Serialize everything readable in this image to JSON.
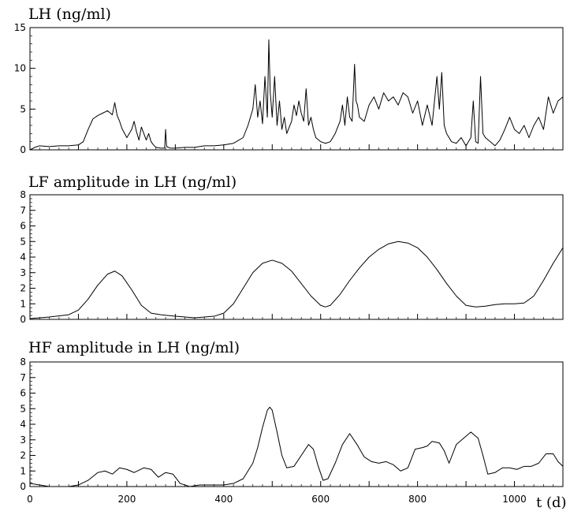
{
  "chart_data": [
    {
      "type": "line",
      "title": "LH (ng/ml)",
      "xlim": [
        0,
        1100
      ],
      "ylim": [
        0,
        15
      ],
      "yticks": [
        0,
        5,
        10,
        15
      ],
      "grid": false,
      "series": [
        {
          "x": [
            0,
            10,
            20,
            40,
            60,
            80,
            100,
            110,
            120,
            130,
            140,
            150,
            160,
            170,
            175,
            180,
            185,
            190,
            200,
            210,
            215,
            220,
            225,
            230,
            235,
            240,
            245,
            250,
            255,
            260,
            270,
            278,
            280,
            282,
            290,
            300,
            320,
            340,
            360,
            380,
            400,
            420,
            440,
            450,
            460,
            465,
            470,
            475,
            480,
            485,
            490,
            493,
            496,
            500,
            505,
            510,
            515,
            520,
            525,
            530,
            540,
            545,
            550,
            555,
            560,
            565,
            570,
            575,
            580,
            585,
            590,
            600,
            610,
            620,
            630,
            640,
            645,
            650,
            655,
            660,
            665,
            670,
            673,
            676,
            680,
            690,
            700,
            710,
            720,
            730,
            740,
            750,
            760,
            770,
            780,
            790,
            800,
            810,
            820,
            830,
            840,
            845,
            850,
            855,
            860,
            870,
            880,
            890,
            900,
            910,
            915,
            920,
            925,
            930,
            935,
            940,
            950,
            960,
            970,
            980,
            990,
            1000,
            1010,
            1020,
            1030,
            1040,
            1050,
            1060,
            1070,
            1080,
            1090,
            1100
          ],
          "values": [
            0,
            0.3,
            0.5,
            0.4,
            0.5,
            0.5,
            0.6,
            1,
            2.5,
            3.8,
            4.2,
            4.5,
            4.8,
            4.3,
            5.8,
            4.2,
            3.5,
            2.6,
            1.5,
            2.5,
            3.5,
            2.2,
            1.2,
            2.8,
            2,
            1.2,
            2,
            1,
            0.6,
            0.3,
            0.2,
            0.2,
            2.5,
            0.4,
            0.2,
            0.2,
            0.3,
            0.3,
            0.5,
            0.5,
            0.6,
            0.8,
            1.5,
            3,
            5,
            8,
            4,
            6,
            3.2,
            9,
            4,
            13.5,
            7,
            4,
            9,
            3,
            6,
            2.5,
            4,
            2,
            3.5,
            5.5,
            4.2,
            6,
            4.5,
            3.5,
            7.5,
            3,
            4,
            2.5,
            1.5,
            1,
            0.8,
            1,
            2,
            3.5,
            5.5,
            3,
            6.5,
            4,
            3.5,
            10.5,
            6,
            5.5,
            4,
            3.5,
            5.5,
            6.5,
            5,
            7,
            6,
            6.5,
            5.5,
            7,
            6.5,
            4.5,
            6,
            3,
            5.5,
            3,
            9,
            5,
            9.5,
            3,
            2,
            1,
            0.8,
            1.5,
            0.5,
            1.5,
            6,
            1,
            0.8,
            9,
            2,
            1.5,
            1,
            0.5,
            1.2,
            2.5,
            4,
            2.5,
            2,
            3,
            1.5,
            3,
            4,
            2.5,
            6.5,
            4.5,
            6,
            6.5
          ]
        }
      ]
    },
    {
      "type": "line",
      "title": "LF amplitude in LH (ng/ml)",
      "xlim": [
        0,
        1100
      ],
      "ylim": [
        0,
        8
      ],
      "yticks": [
        0,
        1,
        2,
        3,
        4,
        5,
        6,
        7,
        8
      ],
      "grid": false,
      "series": [
        {
          "x": [
            0,
            40,
            80,
            100,
            120,
            140,
            160,
            175,
            190,
            210,
            230,
            250,
            270,
            300,
            320,
            340,
            360,
            380,
            400,
            420,
            440,
            460,
            480,
            500,
            520,
            540,
            560,
            580,
            600,
            610,
            620,
            640,
            660,
            680,
            700,
            720,
            740,
            760,
            780,
            800,
            820,
            840,
            860,
            880,
            900,
            920,
            940,
            960,
            980,
            1000,
            1020,
            1040,
            1060,
            1080,
            1100
          ],
          "values": [
            0.05,
            0.15,
            0.3,
            0.6,
            1.3,
            2.2,
            2.9,
            3.1,
            2.8,
            1.9,
            0.9,
            0.4,
            0.3,
            0.2,
            0.15,
            0.1,
            0.15,
            0.2,
            0.4,
            1,
            2,
            3,
            3.6,
            3.8,
            3.6,
            3.1,
            2.3,
            1.5,
            0.9,
            0.8,
            0.9,
            1.6,
            2.5,
            3.3,
            4,
            4.5,
            4.85,
            5,
            4.9,
            4.6,
            4,
            3.2,
            2.3,
            1.5,
            0.9,
            0.8,
            0.85,
            0.95,
            1,
            1,
            1.05,
            1.5,
            2.5,
            3.6,
            4.6
          ]
        }
      ]
    },
    {
      "type": "line",
      "title": "HF amplitude in LH (ng/ml)",
      "xlabel": "t (d)",
      "xlim": [
        0,
        1100
      ],
      "ylim": [
        0,
        8
      ],
      "yticks": [
        0,
        1,
        2,
        3,
        4,
        5,
        6,
        7,
        8
      ],
      "xticks": [
        0,
        200,
        400,
        600,
        800,
        1000
      ],
      "grid": false,
      "series": [
        {
          "x": [
            0,
            20,
            40,
            60,
            80,
            100,
            120,
            140,
            155,
            170,
            185,
            200,
            215,
            235,
            250,
            265,
            280,
            295,
            310,
            330,
            350,
            380,
            400,
            420,
            440,
            460,
            470,
            480,
            490,
            495,
            500,
            510,
            520,
            530,
            545,
            560,
            575,
            585,
            595,
            605,
            615,
            630,
            645,
            660,
            675,
            690,
            705,
            720,
            735,
            750,
            765,
            780,
            795,
            810,
            820,
            830,
            845,
            855,
            865,
            880,
            895,
            910,
            925,
            935,
            945,
            960,
            975,
            990,
            1005,
            1020,
            1035,
            1050,
            1065,
            1080,
            1090,
            1100
          ],
          "values": [
            0.2,
            0.1,
            0,
            0,
            0,
            0.1,
            0.4,
            0.9,
            1,
            0.8,
            1.2,
            1.1,
            0.9,
            1.2,
            1.1,
            0.6,
            0.9,
            0.8,
            0.2,
            0,
            0.1,
            0.1,
            0.1,
            0.2,
            0.5,
            1.5,
            2.5,
            3.8,
            4.9,
            5.1,
            4.9,
            3.5,
            2,
            1.2,
            1.3,
            2,
            2.7,
            2.4,
            1.3,
            0.4,
            0.5,
            1.5,
            2.7,
            3.4,
            2.7,
            1.9,
            1.6,
            1.5,
            1.6,
            1.4,
            1,
            1.2,
            2.4,
            2.5,
            2.6,
            2.9,
            2.8,
            2.3,
            1.5,
            2.7,
            3.1,
            3.5,
            3.1,
            2,
            0.8,
            0.9,
            1.2,
            1.2,
            1.1,
            1.3,
            1.3,
            1.5,
            2.1,
            2.1,
            1.6,
            1.3
          ]
        }
      ]
    }
  ]
}
